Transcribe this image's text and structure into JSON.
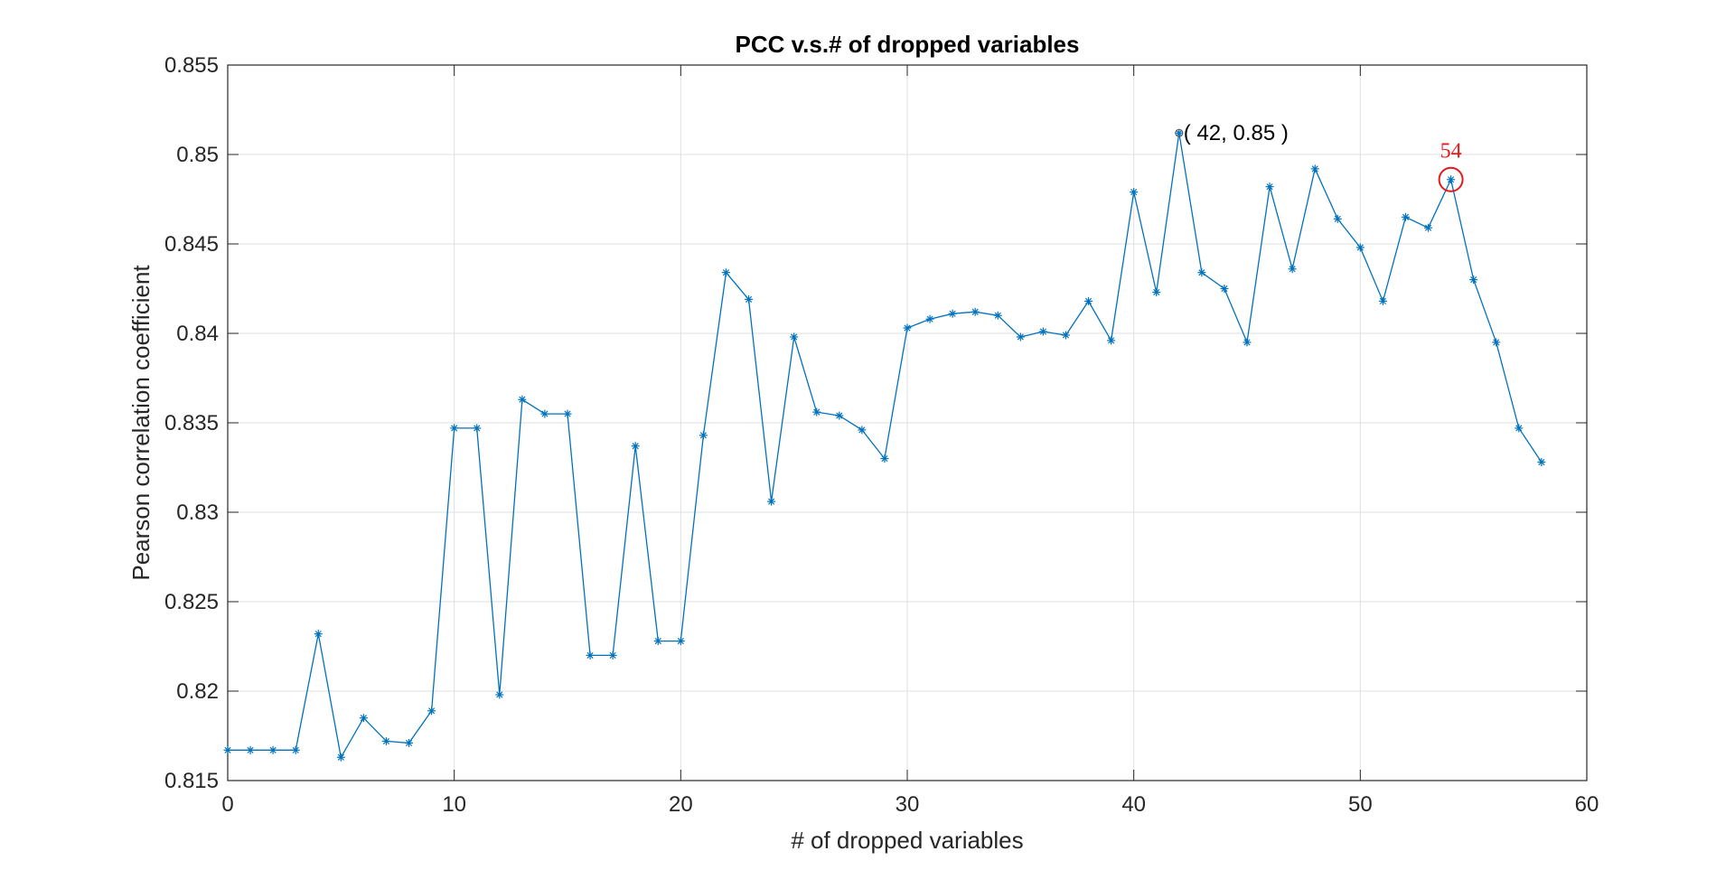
{
  "chart_data": {
    "type": "line",
    "title": "PCC v.s.# of dropped variables",
    "xlabel": "# of dropped variables",
    "ylabel": "Pearson correlation coefficient",
    "xlim": [
      0,
      60
    ],
    "ylim": [
      0.815,
      0.855
    ],
    "xticks": [
      0,
      10,
      20,
      30,
      40,
      50,
      60
    ],
    "xtick_labels": [
      "0",
      "10",
      "20",
      "30",
      "40",
      "50",
      "60"
    ],
    "yticks": [
      0.815,
      0.82,
      0.825,
      0.83,
      0.835,
      0.84,
      0.845,
      0.85,
      0.855
    ],
    "ytick_labels": [
      "0.815",
      "0.82",
      "0.825",
      "0.83",
      "0.835",
      "0.84",
      "0.845",
      "0.85",
      "0.855"
    ],
    "grid": true,
    "series_color": "#0072BD",
    "annotation_color": "#e41a1c",
    "x": [
      0,
      1,
      2,
      3,
      4,
      5,
      6,
      7,
      8,
      9,
      10,
      11,
      12,
      13,
      14,
      15,
      16,
      17,
      18,
      19,
      20,
      21,
      22,
      23,
      24,
      25,
      26,
      27,
      28,
      29,
      30,
      31,
      32,
      33,
      34,
      35,
      36,
      37,
      38,
      39,
      40,
      41,
      42,
      43,
      44,
      45,
      46,
      47,
      48,
      49,
      50,
      51,
      52,
      53,
      54,
      55,
      56,
      57,
      58
    ],
    "y": [
      0.8167,
      0.8167,
      0.8167,
      0.8167,
      0.8232,
      0.8163,
      0.8185,
      0.8172,
      0.8171,
      0.8189,
      0.8347,
      0.8347,
      0.8198,
      0.8363,
      0.8355,
      0.8355,
      0.822,
      0.822,
      0.8337,
      0.8228,
      0.8228,
      0.8343,
      0.8434,
      0.8419,
      0.8306,
      0.8398,
      0.8356,
      0.8354,
      0.8346,
      0.833,
      0.8403,
      0.8408,
      0.8411,
      0.8412,
      0.841,
      0.8398,
      0.8401,
      0.8399,
      0.8418,
      0.8396,
      0.8479,
      0.8423,
      0.8512,
      0.8434,
      0.8425,
      0.8395,
      0.8482,
      0.8436,
      0.8492,
      0.8464,
      0.8448,
      0.8418,
      0.8465,
      0.8459,
      0.8486,
      0.843,
      0.8395,
      0.8347,
      0.8328
    ],
    "annotations": [
      {
        "text": "( 42, 0.85 )",
        "x": 42,
        "y": 0.8512
      },
      {
        "text": "54",
        "x": 54,
        "y": 0.8486,
        "circled": true
      }
    ]
  }
}
